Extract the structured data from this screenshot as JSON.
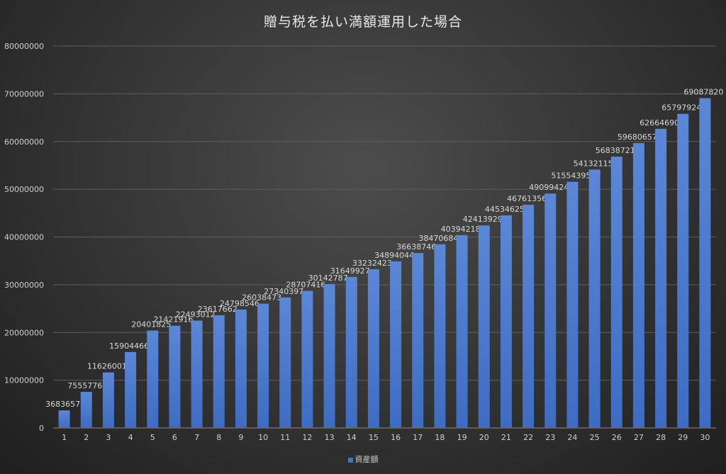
{
  "chart_data": {
    "type": "bar",
    "title": "贈与税を払い満額運用した場合",
    "categories": [
      "1",
      "2",
      "3",
      "4",
      "5",
      "6",
      "7",
      "8",
      "9",
      "10",
      "11",
      "12",
      "13",
      "14",
      "15",
      "16",
      "17",
      "18",
      "19",
      "20",
      "21",
      "22",
      "23",
      "24",
      "25",
      "26",
      "27",
      "28",
      "29",
      "30"
    ],
    "series": [
      {
        "name": "資産額",
        "values": [
          3683657,
          7555776,
          11626001,
          15904466,
          20401825,
          21421916,
          22493012,
          23617662,
          24798546,
          26038473,
          27340397,
          28707416,
          30142787,
          31649927,
          33232423,
          34894044,
          36638746,
          38470684,
          40394218,
          42413929,
          44534625,
          46761356,
          49099424,
          51554395,
          54132115,
          56838721,
          59680657,
          62664690,
          65797924,
          69087820
        ]
      }
    ],
    "ylim": [
      0,
      80000000
    ],
    "yticks": [
      0,
      10000000,
      20000000,
      30000000,
      40000000,
      50000000,
      60000000,
      70000000,
      80000000
    ],
    "grid": true,
    "legend": "bottom",
    "colors": {
      "bar": "#4472c4",
      "background": "#3a3a3a"
    }
  }
}
